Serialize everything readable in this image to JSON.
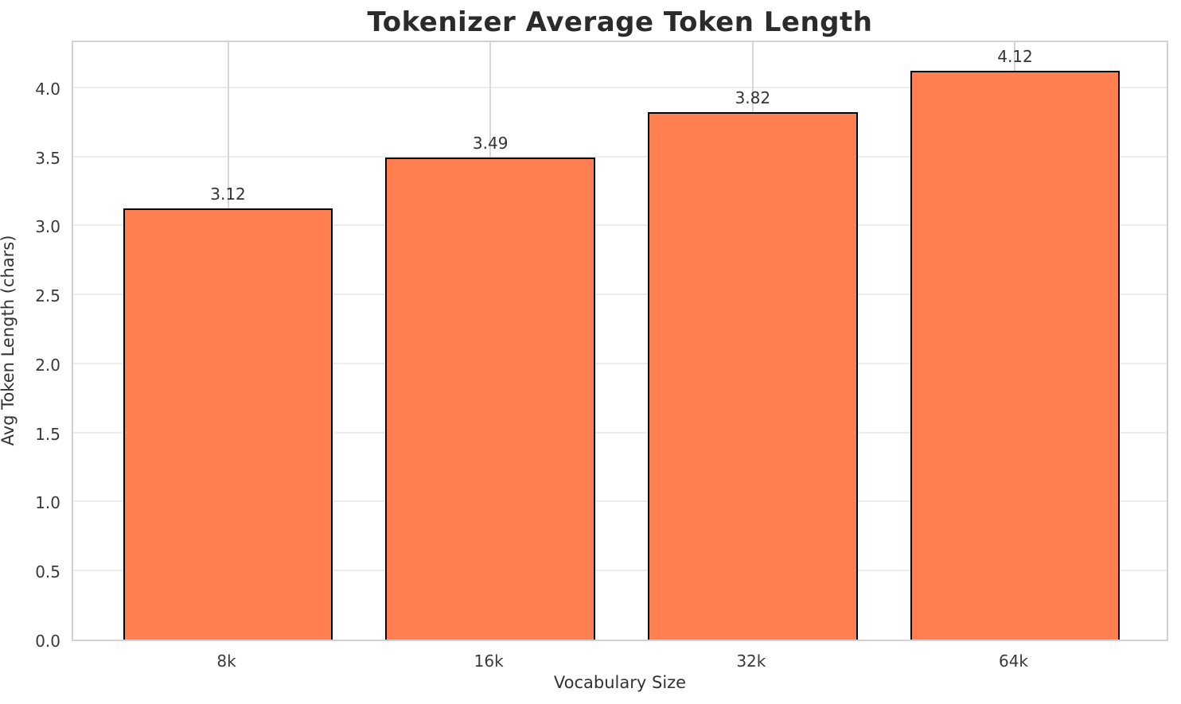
{
  "chart_data": {
    "type": "bar",
    "title": "Tokenizer Average Token Length",
    "xlabel": "Vocabulary Size",
    "ylabel": "Avg Token Length (chars)",
    "categories": [
      "8k",
      "16k",
      "32k",
      "64k"
    ],
    "values": [
      3.12,
      3.49,
      3.82,
      4.12
    ],
    "value_labels": [
      "3.12",
      "3.49",
      "3.82",
      "4.12"
    ],
    "yticks": [
      0.0,
      0.5,
      1.0,
      1.5,
      2.0,
      2.5,
      3.0,
      3.5,
      4.0
    ],
    "ytick_labels": [
      "0.0",
      "0.5",
      "1.0",
      "1.5",
      "2.0",
      "2.5",
      "3.0",
      "3.5",
      "4.0"
    ],
    "ylim": [
      0,
      4.35
    ],
    "xlim": [
      -0.59,
      3.59
    ],
    "bar_width_units": 0.8,
    "grid": "on",
    "legend": "none",
    "bar_fill_color": "#FF7F50",
    "bar_edge_color": "#000000",
    "spine_color": "#d2d2d2",
    "hgrid_color": "#ededed",
    "vgrid_color": "#d7d7d7"
  }
}
